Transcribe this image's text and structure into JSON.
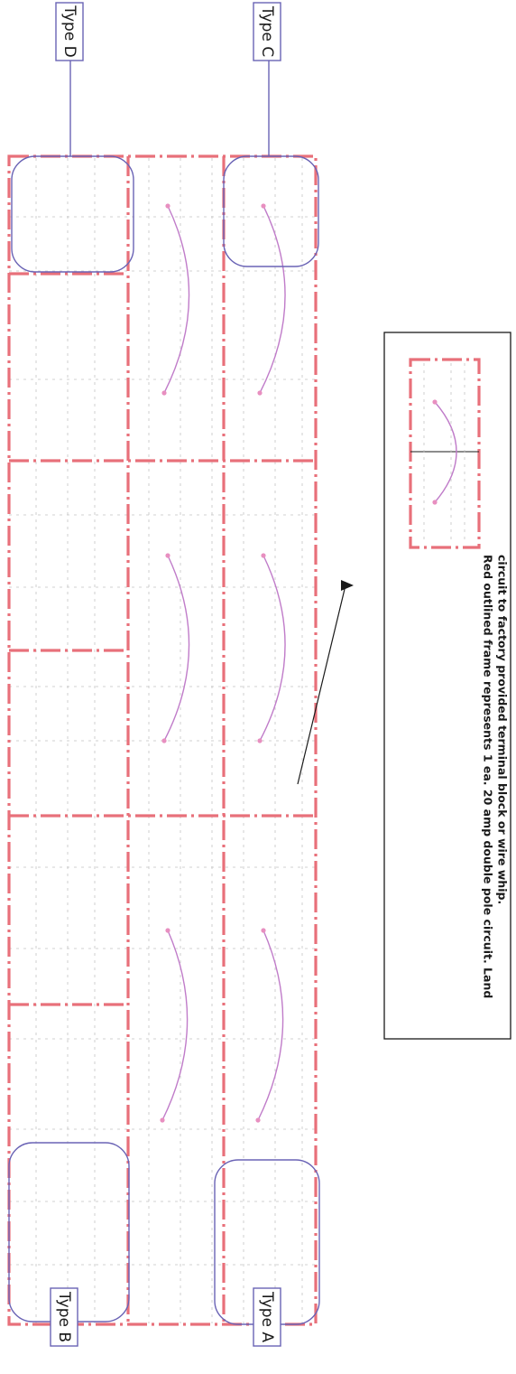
{
  "labels": {
    "type_a": "Type A",
    "type_b": "Type B",
    "type_c": "Type C",
    "type_d": "Type D"
  },
  "legend": {
    "line1": "Red outlined frame represents 1 ea. 20 amp double pole circuit. Land",
    "line2": "circuit to factory provided terminal block or wire whip."
  },
  "colors": {
    "frame_red": "#e8707a",
    "callout_blue": "#6a63b5",
    "arc_purple": "#c07cc9",
    "grid_gray": "#b9b9b9"
  }
}
